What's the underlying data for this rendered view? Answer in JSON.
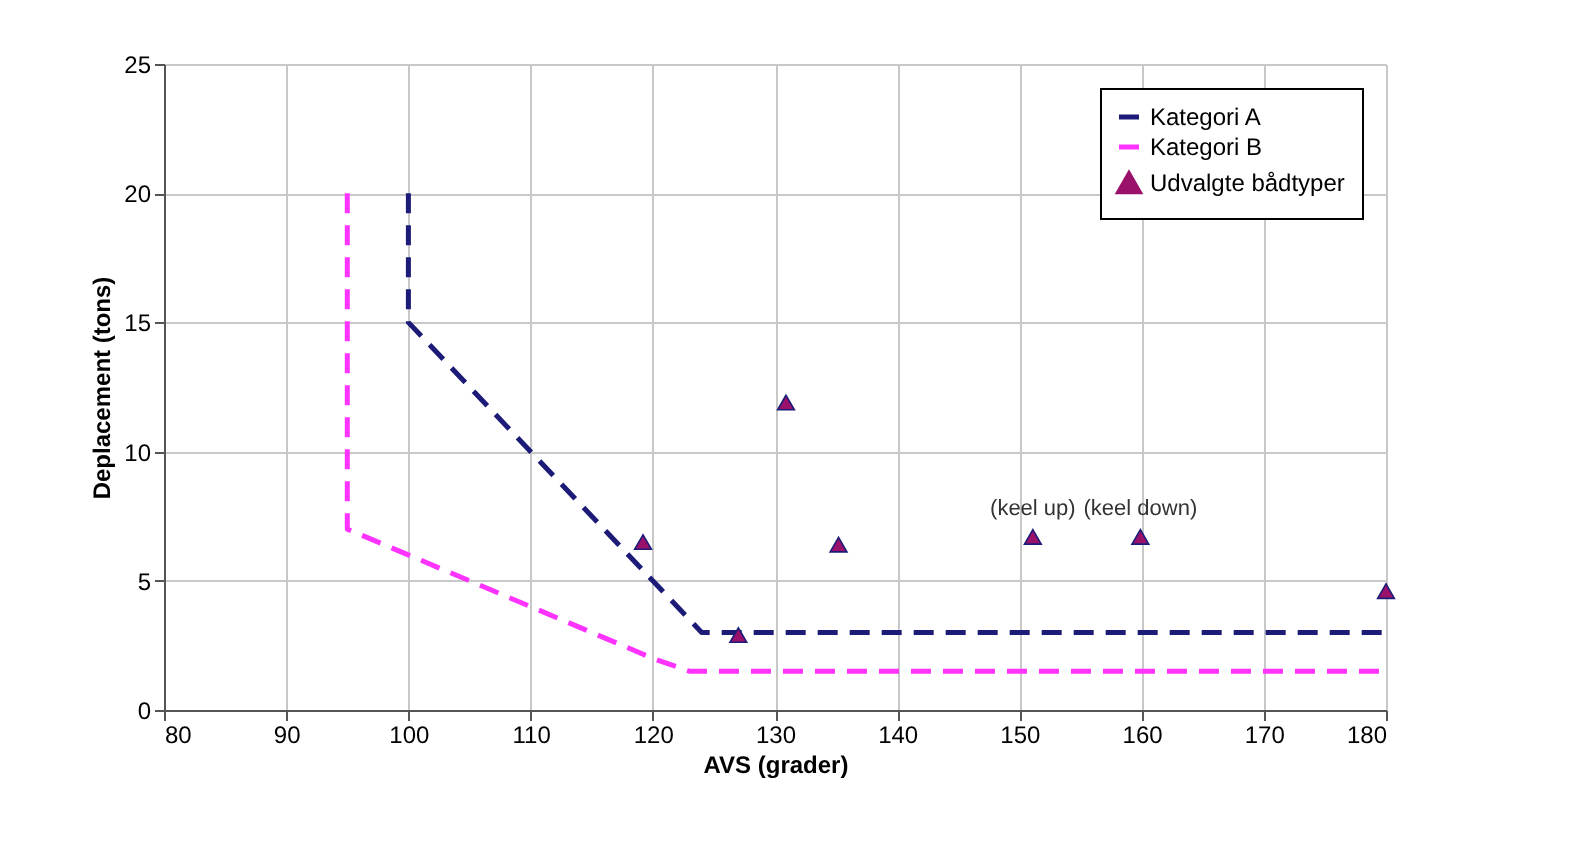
{
  "chart_data": {
    "type": "line",
    "xlabel": "AVS (grader)",
    "ylabel": "Deplacement (tons)",
    "xlim": [
      80,
      180
    ],
    "xticks": [
      80,
      90,
      100,
      110,
      120,
      130,
      140,
      150,
      160,
      170,
      180
    ],
    "ylim": [
      0,
      25
    ],
    "yticks": [
      0,
      5,
      10,
      15,
      20,
      25
    ],
    "grid": true,
    "legend": "top right",
    "series": [
      {
        "name": "Kategori A",
        "color": "#1c1c78",
        "line_style": "dashed",
        "marker": "none",
        "x": [
          100,
          100,
          124,
          180
        ],
        "values": [
          20,
          15,
          3,
          3
        ]
      },
      {
        "name": "Kategori B",
        "color": "#ff33ff",
        "line_style": "dashed",
        "marker": "none",
        "x": [
          95,
          95,
          120,
          123,
          180
        ],
        "values": [
          20,
          7,
          2,
          1.5,
          1.5
        ]
      },
      {
        "name": "Udvalgte bådtyper",
        "type": "scatter",
        "color": "#99116b",
        "marker": "triangle",
        "x": [
          119.2,
          127,
          130.9,
          135.2,
          151.1,
          159.9,
          180
        ],
        "values": [
          6.5,
          2.9,
          11.9,
          6.4,
          6.7,
          6.7,
          4.6
        ]
      }
    ],
    "annotations": [
      {
        "text": "(keel up)",
        "x": 151.1,
        "y": 6.7
      },
      {
        "text": "(keel down)",
        "x": 159.9,
        "y": 6.7
      }
    ]
  }
}
